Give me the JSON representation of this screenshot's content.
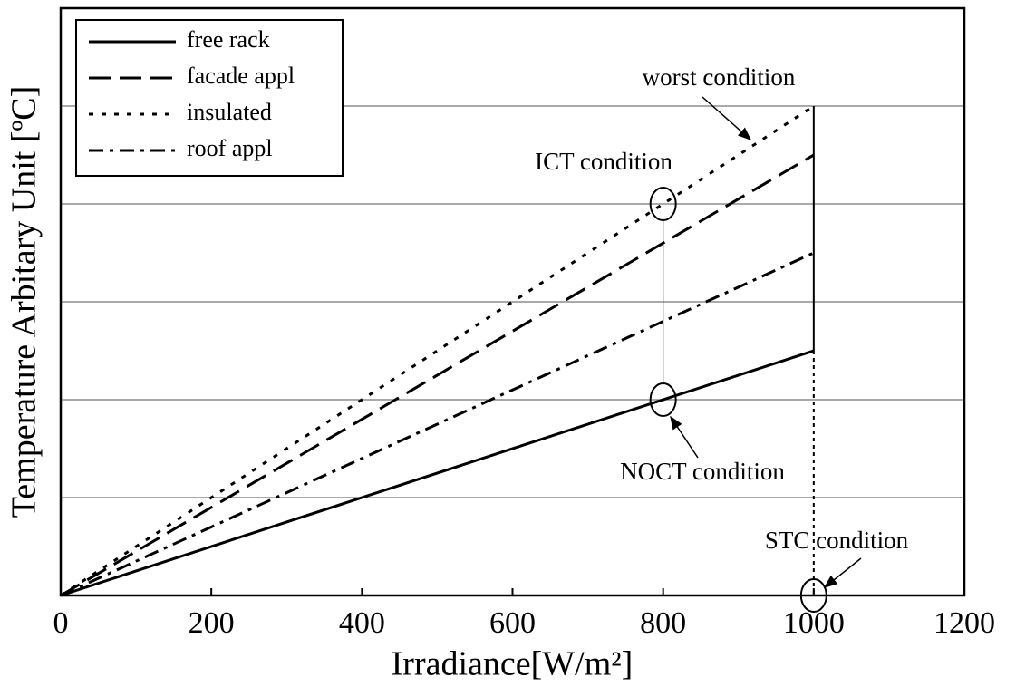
{
  "chart_data": {
    "type": "line",
    "xlabel": "Irradiance[W/m²]",
    "ylabel": "Temperature Arbitary Unit [ºC]",
    "xlim": [
      0,
      1200
    ],
    "xticks": [
      0,
      200,
      400,
      600,
      800,
      1000,
      1200
    ],
    "ylim": [
      0,
      6
    ],
    "yticks": [
      1,
      2,
      3,
      4,
      5
    ],
    "grid": true,
    "x": [
      0,
      1000
    ],
    "series": [
      {
        "name": "free rack",
        "color": "#000000",
        "dash": "solid",
        "values": [
          0,
          2.5
        ]
      },
      {
        "name": "facade appl",
        "color": "#000000",
        "dash": "dashed",
        "values": [
          0,
          4.5
        ]
      },
      {
        "name": "insulated",
        "color": "#000000",
        "dash": "dotted",
        "values": [
          0,
          5
        ]
      },
      {
        "name": "roof appl",
        "color": "#000000",
        "dash": "dashdot",
        "values": [
          0,
          3.5
        ]
      }
    ],
    "legend": "upper left",
    "annotations": [
      {
        "text": "worst condition"
      },
      {
        "text": "ICT condition",
        "x": 800,
        "y": 4
      },
      {
        "text": "NOCT condition",
        "x": 800,
        "y": 2
      },
      {
        "text": "STC condition",
        "x": 1000,
        "y": 0
      }
    ]
  }
}
